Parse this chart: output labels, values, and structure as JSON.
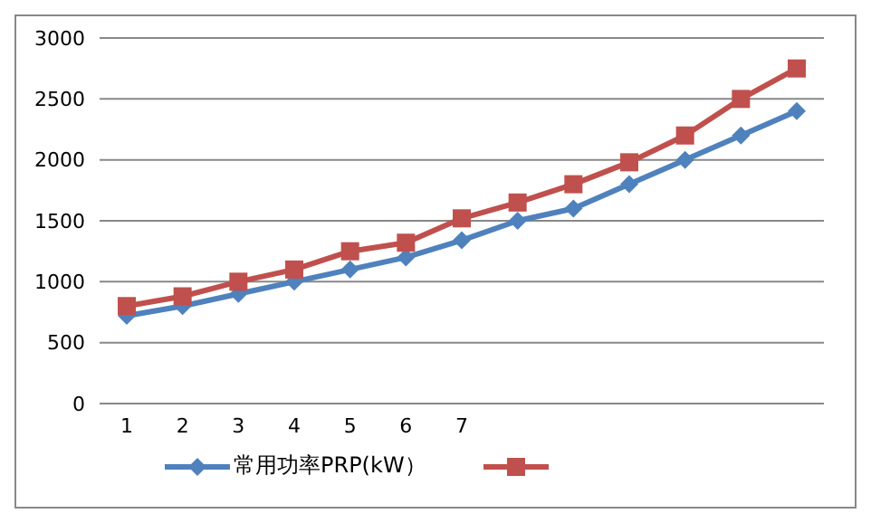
{
  "chart_data": {
    "type": "line",
    "categories": [
      "1",
      "2",
      "3",
      "4",
      "5",
      "6",
      "7",
      null,
      null,
      null,
      null,
      null,
      null
    ],
    "series": [
      {
        "name": "常用功率PRP(kW）",
        "color": "#4f81bd",
        "marker": "diamond",
        "values": [
          720,
          800,
          900,
          1000,
          1100,
          1200,
          1340,
          1500,
          1600,
          1800,
          2000,
          2200,
          2400
        ]
      },
      {
        "color": "#c0504d",
        "marker": "square",
        "values": [
          800,
          880,
          1000,
          1100,
          1250,
          1320,
          1520,
          1650,
          1800,
          1980,
          2200,
          2500,
          2750
        ]
      }
    ],
    "ylim": [
      0,
      3000
    ],
    "yticks": [
      0,
      500,
      1000,
      1500,
      2000,
      2500,
      3000
    ],
    "grid": "y",
    "legend": "bottom"
  }
}
